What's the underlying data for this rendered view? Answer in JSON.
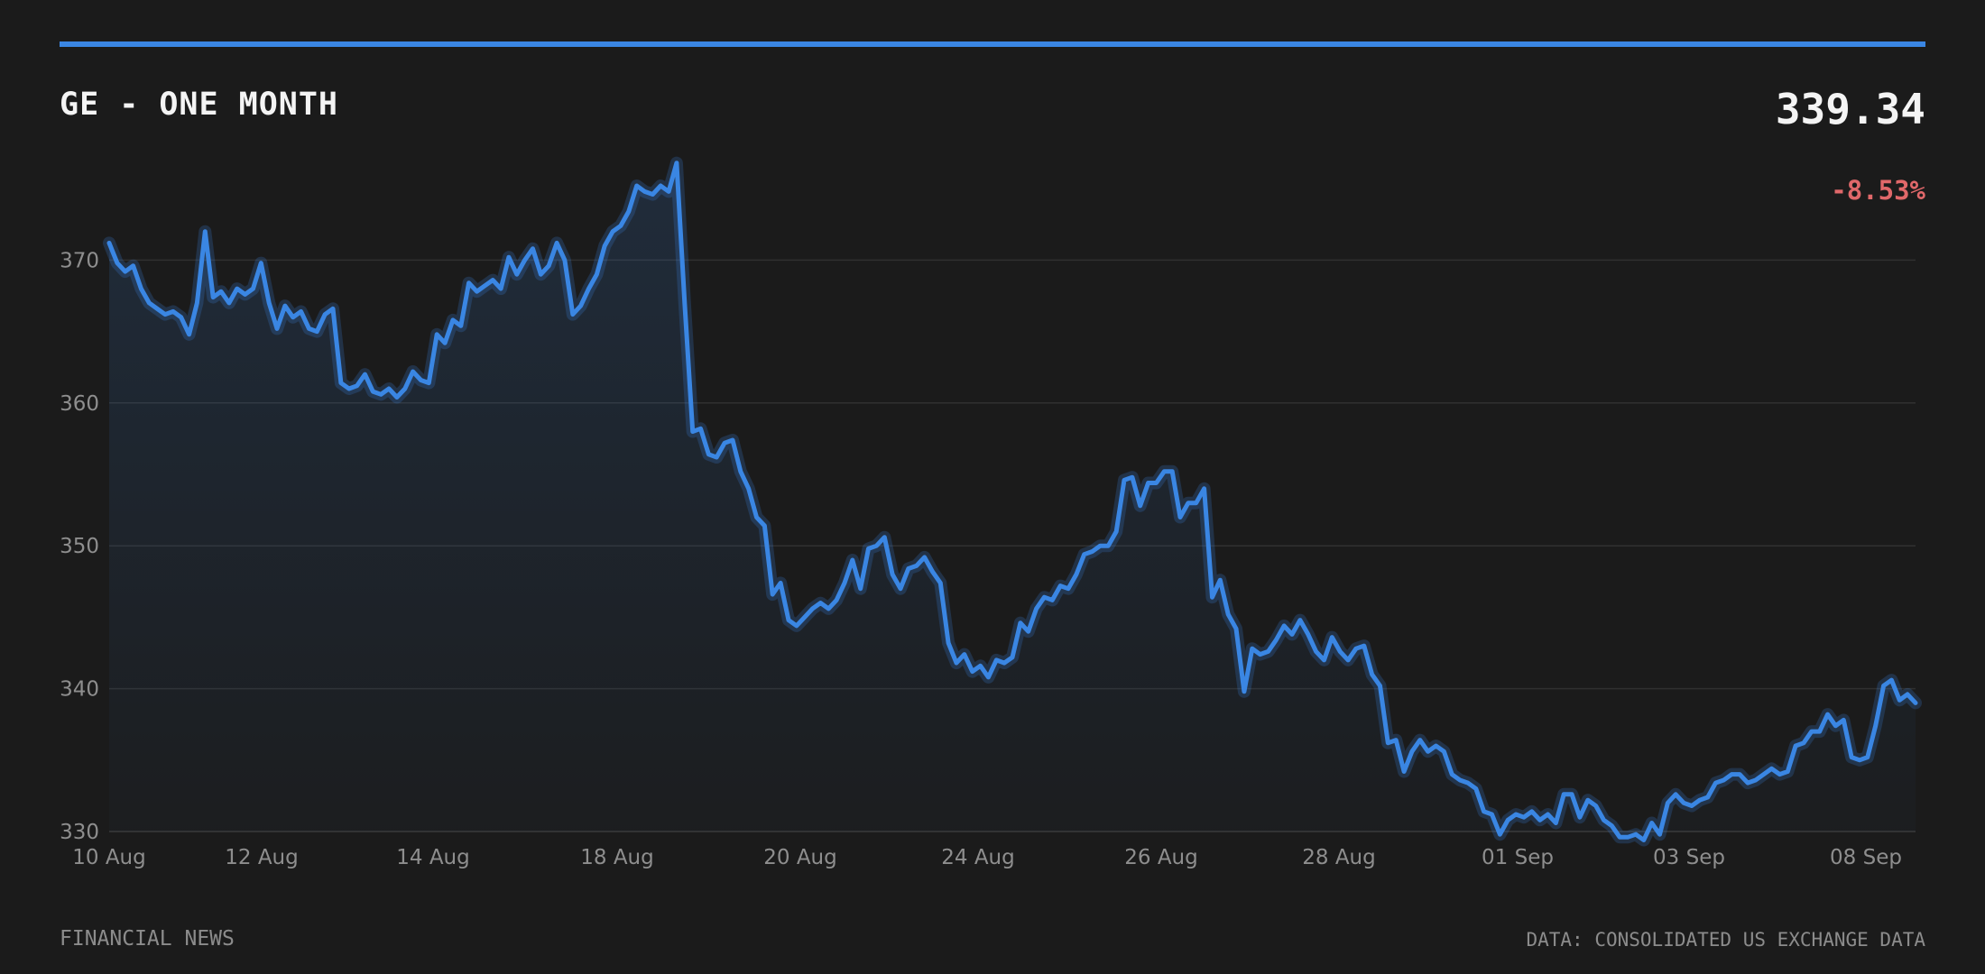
{
  "header": {
    "title": "GE - ONE MONTH",
    "price": "339.34",
    "change": "-8.53%"
  },
  "footer": {
    "left": "FINANCIAL NEWS",
    "right": "DATA: CONSOLIDATED US EXCHANGE DATA"
  },
  "colors": {
    "background": "#1b1b1b",
    "accent": "#3a86e3",
    "negative": "#e0686a",
    "grid": "#333333",
    "muted_text": "#8e8e8e"
  },
  "chart_data": {
    "type": "area",
    "title": "GE - ONE MONTH",
    "xlabel": "",
    "ylabel": "",
    "ylim": [
      330,
      380
    ],
    "yticks": [
      330,
      340,
      350,
      360,
      370
    ],
    "grid": true,
    "xtick_labels": [
      "10 Aug",
      "12 Aug",
      "14 Aug",
      "18 Aug",
      "20 Aug",
      "24 Aug",
      "26 Aug",
      "28 Aug",
      "01 Sep",
      "03 Sep",
      "08 Sep"
    ],
    "series": [
      {
        "values": [
          371.2,
          369.8,
          369.2,
          369.6,
          368.0,
          367.0,
          366.6,
          366.2,
          366.4,
          366.0,
          364.8,
          367.0,
          372.0,
          367.4,
          367.8,
          367.0,
          368.0,
          367.6,
          368.0,
          369.8,
          367.0,
          365.2,
          366.8,
          366.0,
          366.4,
          365.2,
          365.0,
          366.2,
          366.6,
          361.4,
          361.0,
          361.2,
          362.0,
          360.8,
          360.6,
          361.0,
          360.4,
          361.0,
          362.2,
          361.6,
          361.4,
          364.8,
          364.2,
          365.8,
          365.4,
          368.4,
          367.8,
          368.2,
          368.6,
          368.0,
          370.2,
          369.0,
          370.0,
          370.8,
          369.0,
          369.6,
          371.2,
          370.0,
          366.2,
          366.8,
          368.0,
          369.0,
          371.0,
          372.0,
          372.4,
          373.4,
          375.2,
          374.8,
          374.6,
          375.2,
          374.8,
          376.8,
          367.0,
          358.0,
          358.2,
          356.4,
          356.2,
          357.2,
          357.4,
          355.2,
          354.0,
          352.0,
          351.4,
          346.6,
          347.4,
          344.8,
          344.4,
          345.0,
          345.6,
          346.0,
          345.6,
          346.2,
          347.4,
          349.0,
          347.0,
          349.8,
          350.0,
          350.6,
          348.0,
          347.0,
          348.4,
          348.6,
          349.2,
          348.2,
          347.4,
          343.2,
          341.8,
          342.4,
          341.2,
          341.6,
          340.8,
          342.0,
          341.8,
          342.2,
          344.6,
          344.0,
          345.6,
          346.4,
          346.2,
          347.2,
          347.0,
          348.0,
          349.4,
          349.6,
          350.0,
          350.0,
          351.0,
          354.6,
          354.8,
          352.8,
          354.4,
          354.4,
          355.2,
          355.2,
          352.0,
          353.0,
          353.0,
          354.0,
          346.4,
          347.6,
          345.2,
          344.2,
          339.8,
          342.8,
          342.4,
          342.6,
          343.4,
          344.4,
          343.8,
          344.8,
          343.8,
          342.6,
          342.0,
          343.6,
          342.6,
          342.0,
          342.8,
          343.0,
          341.0,
          340.2,
          336.2,
          336.4,
          334.2,
          335.6,
          336.4,
          335.6,
          336.0,
          335.6,
          334.0,
          333.6,
          333.4,
          333.0,
          331.4,
          331.2,
          329.8,
          330.8,
          331.2,
          331.0,
          331.4,
          330.8,
          331.2,
          330.6,
          332.6,
          332.6,
          331.0,
          332.2,
          331.8,
          330.8,
          330.4,
          329.6,
          329.6,
          329.8,
          329.4,
          330.6,
          329.8,
          332.0,
          332.6,
          332.0,
          331.8,
          332.2,
          332.4,
          333.4,
          333.6,
          334.0,
          334.0,
          333.4,
          333.6,
          334.0,
          334.4,
          334.0,
          334.2,
          336.0,
          336.2,
          337.0,
          337.0,
          338.2,
          337.4,
          337.8,
          335.2,
          335.0,
          335.2,
          337.4,
          340.2,
          340.6,
          339.2,
          339.6,
          339.0
        ]
      }
    ]
  }
}
